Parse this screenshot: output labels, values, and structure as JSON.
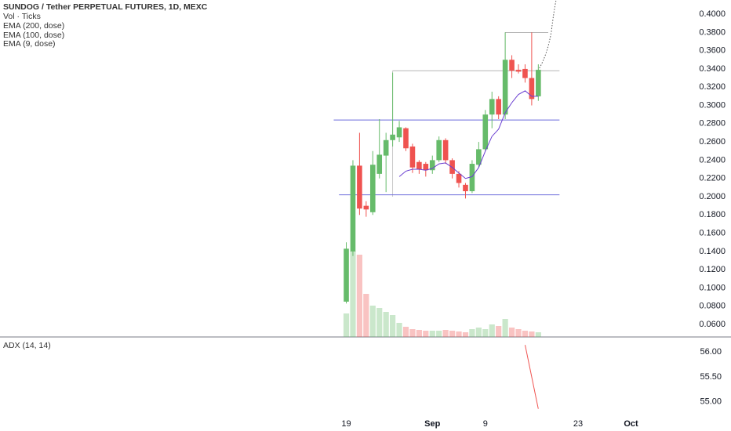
{
  "header": {
    "title": "SUNDOG / Tether PERPETUAL FUTURES, 1D, MEXC",
    "indicators": [
      "Vol · Ticks",
      "EMA (200, dose)",
      "EMA (100, dose)",
      "EMA (9, dose)"
    ]
  },
  "chart_data": [
    {
      "type": "candlestick",
      "x": [
        0,
        1,
        2,
        3,
        4,
        5,
        6,
        7,
        8,
        9,
        10,
        11,
        12,
        13,
        14,
        15,
        16,
        17,
        18,
        19,
        20,
        21,
        22,
        23,
        24,
        25,
        26,
        27,
        28,
        29
      ],
      "open": [
        0.085,
        0.14,
        0.234,
        0.19,
        0.183,
        0.225,
        0.245,
        0.262,
        0.265,
        0.275,
        0.255,
        0.238,
        0.236,
        0.229,
        0.24,
        0.262,
        0.24,
        0.225,
        0.213,
        0.206,
        0.235,
        0.252,
        0.29,
        0.307,
        0.29,
        0.35,
        0.339,
        0.34,
        0.33,
        0.31
      ],
      "high": [
        0.15,
        0.24,
        0.27,
        0.195,
        0.25,
        0.285,
        0.27,
        0.336,
        0.283,
        0.276,
        0.258,
        0.24,
        0.238,
        0.245,
        0.266,
        0.264,
        0.242,
        0.228,
        0.215,
        0.24,
        0.26,
        0.295,
        0.315,
        0.31,
        0.38,
        0.355,
        0.345,
        0.345,
        0.38,
        0.345
      ],
      "low": [
        0.083,
        0.135,
        0.18,
        0.178,
        0.18,
        0.22,
        0.205,
        0.255,
        0.26,
        0.25,
        0.226,
        0.225,
        0.222,
        0.225,
        0.238,
        0.236,
        0.22,
        0.21,
        0.198,
        0.204,
        0.232,
        0.25,
        0.275,
        0.285,
        0.285,
        0.33,
        0.335,
        0.325,
        0.3,
        0.305
      ],
      "close": [
        0.143,
        0.234,
        0.187,
        0.186,
        0.235,
        0.246,
        0.262,
        0.268,
        0.276,
        0.253,
        0.232,
        0.23,
        0.229,
        0.24,
        0.262,
        0.24,
        0.225,
        0.215,
        0.206,
        0.236,
        0.252,
        0.29,
        0.307,
        0.29,
        0.35,
        0.338,
        0.337,
        0.33,
        0.307,
        0.339
      ],
      "volume": [
        30,
        110,
        105,
        55,
        40,
        37,
        32,
        28,
        18,
        13,
        10,
        9,
        8,
        8,
        8,
        9,
        8,
        7,
        6,
        10,
        12,
        10,
        16,
        14,
        23,
        12,
        10,
        8,
        7,
        6
      ],
      "ema": [
        null,
        null,
        null,
        null,
        null,
        null,
        null,
        null,
        0.222,
        0.228,
        0.23,
        0.23,
        0.229,
        0.231,
        0.236,
        0.237,
        0.232,
        0.226,
        0.22,
        0.222,
        0.232,
        0.25,
        0.266,
        0.274,
        0.292,
        0.303,
        0.312,
        0.316,
        0.31,
        0.31
      ],
      "ema_color": "#6a3fd1",
      "up_color": "#66bb6a",
      "down_color": "#ef5350",
      "hlines": [
        {
          "value": 0.284,
          "color": "#6b6bdc"
        },
        {
          "value": 0.202,
          "color": "#6b6bdc"
        }
      ],
      "levels": [
        0.338,
        0.38
      ],
      "xlim": [
        -52.3,
        58.1
      ],
      "ylim": [
        0.0463,
        0.4155
      ],
      "xticks": [
        {
          "value": 0,
          "label": "19"
        },
        {
          "value": 13,
          "label": "Sep"
        },
        {
          "value": 21,
          "label": "9"
        },
        {
          "value": 35,
          "label": "23"
        },
        {
          "value": 43,
          "label": "Oct"
        }
      ],
      "yticks": [
        {
          "value": 0.4,
          "label": "0.4000"
        },
        {
          "value": 0.38,
          "label": "0.3800"
        },
        {
          "value": 0.36,
          "label": "0.3600"
        },
        {
          "value": 0.34,
          "label": "0.3400"
        },
        {
          "value": 0.32,
          "label": "0.3200"
        },
        {
          "value": 0.3,
          "label": "0.3000"
        },
        {
          "value": 0.28,
          "label": "0.2800"
        },
        {
          "value": 0.26,
          "label": "0.2600"
        },
        {
          "value": 0.24,
          "label": "0.2400"
        },
        {
          "value": 0.22,
          "label": "0.2200"
        },
        {
          "value": 0.2,
          "label": "0.2000"
        },
        {
          "value": 0.18,
          "label": "0.1800"
        },
        {
          "value": 0.16,
          "label": "0.1600"
        },
        {
          "value": 0.14,
          "label": "0.1400"
        },
        {
          "value": 0.12,
          "label": "0.1200"
        },
        {
          "value": 0.1,
          "label": "0.1000"
        },
        {
          "value": 0.08,
          "label": "0.0800"
        },
        {
          "value": 0.06,
          "label": "0.0600"
        }
      ]
    },
    {
      "type": "line",
      "title": "ADX (14, 14)",
      "x": [
        27,
        29
      ],
      "values": [
        56.14,
        54.86
      ],
      "color": "#ef5350",
      "ylim": [
        54.73,
        56.3
      ],
      "yticks": [
        {
          "value": 56,
          "label": "56.00"
        },
        {
          "value": 55.5,
          "label": "55.50"
        },
        {
          "value": 55,
          "label": "55.00"
        }
      ]
    }
  ]
}
